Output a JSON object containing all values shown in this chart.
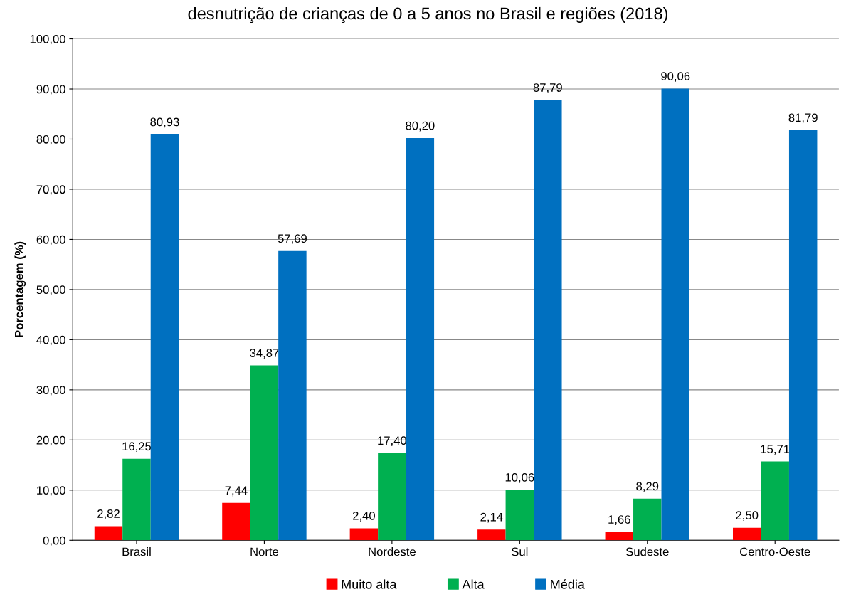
{
  "chart_data": {
    "type": "bar",
    "title": "desnutrição de crianças de 0 a 5 anos no Brasil e regiões (2018)",
    "ylabel": "Porcentagem (%)",
    "categories": [
      "Brasil",
      "Norte",
      "Nordeste",
      "Sul",
      "Sudeste",
      "Centro-Oeste"
    ],
    "series": [
      {
        "name": "Muito alta",
        "color": "#ff0000",
        "values": [
          2.82,
          7.44,
          2.4,
          2.14,
          1.66,
          2.5
        ],
        "value_labels": [
          "2,82",
          "7,44",
          "2,40",
          "2,14",
          "1,66",
          "2,50"
        ]
      },
      {
        "name": "Alta",
        "color": "#00b050",
        "values": [
          16.25,
          34.87,
          17.4,
          10.06,
          8.29,
          15.71
        ],
        "value_labels": [
          "16,25",
          "34,87",
          "17,40",
          "10,06",
          "8,29",
          "15,71"
        ]
      },
      {
        "name": "Média",
        "color": "#0070c0",
        "values": [
          80.93,
          57.69,
          80.2,
          87.79,
          90.06,
          81.79
        ],
        "value_labels": [
          "80,93",
          "57,69",
          "80,20",
          "87,79",
          "90,06",
          "81,79"
        ]
      }
    ],
    "ylim": [
      0,
      100
    ],
    "yticks": [
      {
        "value": 0,
        "label": "0,00"
      },
      {
        "value": 10,
        "label": "10,00"
      },
      {
        "value": 20,
        "label": "20,00"
      },
      {
        "value": 30,
        "label": "30,00"
      },
      {
        "value": 40,
        "label": "40,00"
      },
      {
        "value": 50,
        "label": "50,00"
      },
      {
        "value": 60,
        "label": "60,00"
      },
      {
        "value": 70,
        "label": "70,00"
      },
      {
        "value": 80,
        "label": "80,00"
      },
      {
        "value": 90,
        "label": "90,00"
      },
      {
        "value": 100,
        "label": "100,00"
      }
    ],
    "grid": "y",
    "legend": "bottom"
  }
}
